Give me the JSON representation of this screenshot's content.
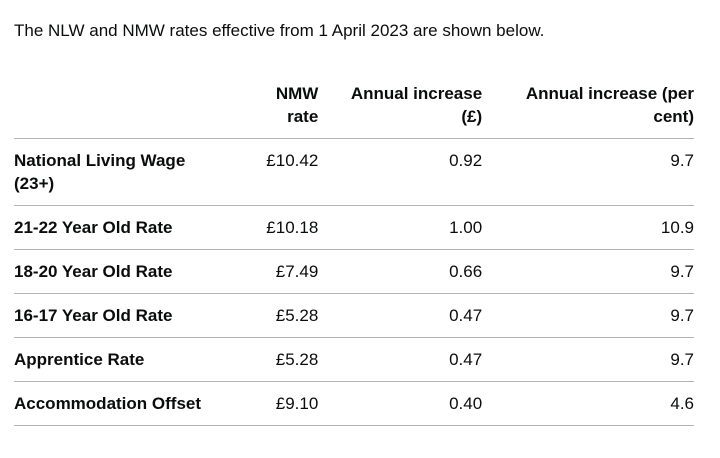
{
  "intro_text": "The NLW and NMW rates effective from 1 April 2023 are shown below.",
  "table": {
    "headers": {
      "label": "",
      "rate": "NMW rate",
      "increase_gbp": "Annual increase (£)",
      "increase_pct": "Annual increase (per cent)"
    },
    "rows": [
      {
        "label": "National Living Wage (23+)",
        "rate": "£10.42",
        "increase_gbp": "0.92",
        "increase_pct": "9.7"
      },
      {
        "label": "21-22 Year Old Rate",
        "rate": "£10.18",
        "increase_gbp": "1.00",
        "increase_pct": "10.9"
      },
      {
        "label": "18-20 Year Old Rate",
        "rate": "£7.49",
        "increase_gbp": "0.66",
        "increase_pct": "9.7"
      },
      {
        "label": "16-17 Year Old Rate",
        "rate": "£5.28",
        "increase_gbp": "0.47",
        "increase_pct": "9.7"
      },
      {
        "label": "Apprentice Rate",
        "rate": "£5.28",
        "increase_gbp": "0.47",
        "increase_pct": "9.7"
      },
      {
        "label": "Accommodation Offset",
        "rate": "£9.10",
        "increase_gbp": "0.40",
        "increase_pct": "4.6"
      }
    ]
  }
}
